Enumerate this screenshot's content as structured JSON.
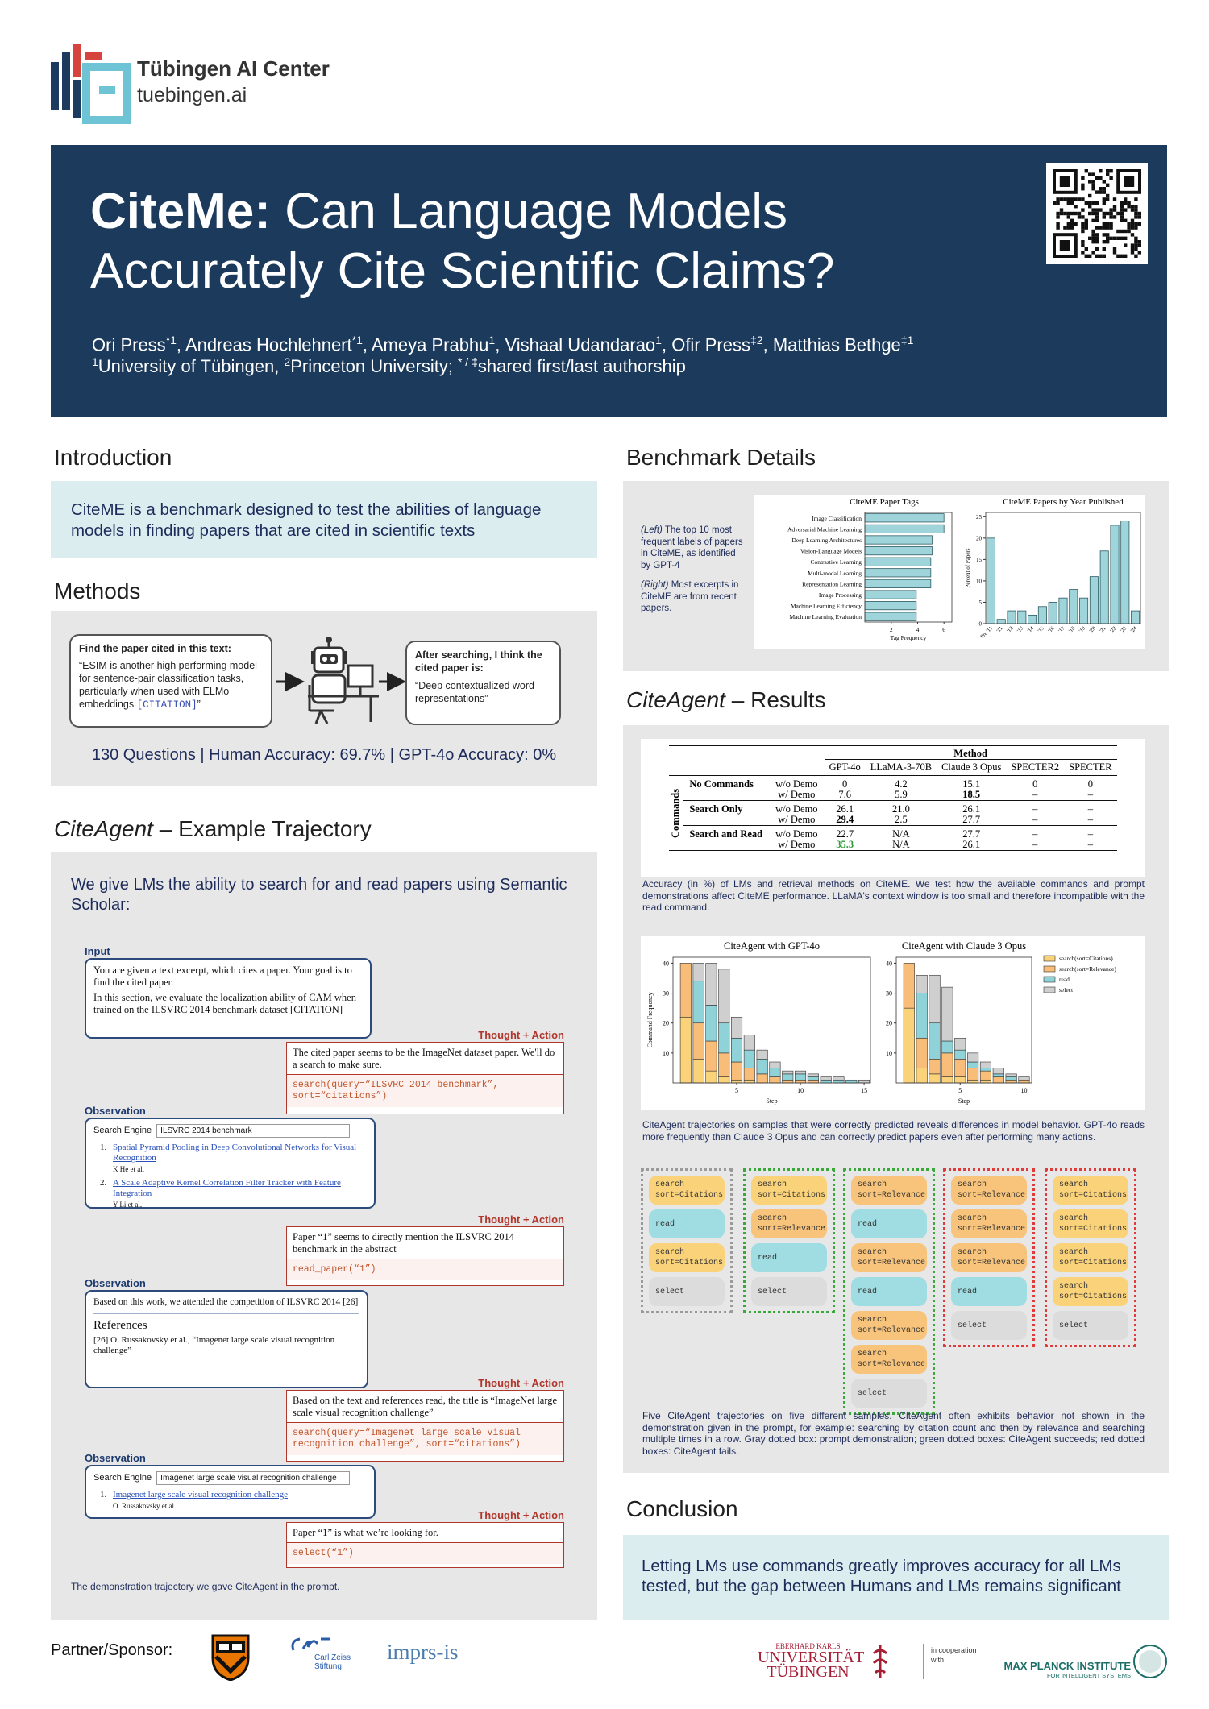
{
  "header": {
    "logo_name": "Tübingen AI Center",
    "logo_url": "tuebingen.ai",
    "title_bold": "CiteMe:",
    "title_rest": "Can Language Models Accurately Cite Scientific Claims?",
    "author_separator": ", ",
    "authors": [
      {
        "name": "Ori Press",
        "sup": "*1"
      },
      {
        "name": "Andreas Hochlehnert",
        "sup": "*1"
      },
      {
        "name": "Ameya Prabhu",
        "sup": "1"
      },
      {
        "name": "Vishaal Udandarao",
        "sup": "1"
      },
      {
        "name": "Ofir Press",
        "sup": "‡2"
      },
      {
        "name": "Matthias Bethge",
        "sup": "‡1"
      }
    ],
    "affiliations": [
      {
        "sup": "1",
        "text": "University of Tübingen,"
      },
      {
        "sup": "2",
        "text": "Princeton University;"
      },
      {
        "sup": "* / ‡",
        "text": "shared first/last authorship"
      }
    ]
  },
  "introduction": {
    "heading": "Introduction",
    "text": "CiteME is a benchmark designed to test the abilities of language models in finding papers that are cited in scientific texts"
  },
  "methods": {
    "heading": "Methods",
    "input_title": "Find the paper cited in this text:",
    "quote": "“ESIM is another high performing model for sentence-pair classification tasks, particularly when used with ELMo embeddings",
    "citation": "[CITATION]",
    "quote_close": "”",
    "output_title": "After searching, I think the cited paper is:",
    "output_quote": "“Deep contextualized word representations”",
    "stats": "130 Questions | Human Accuracy: 69.7% | GPT-4o Accuracy: 0%"
  },
  "trajectory": {
    "heading_italic": "CiteAgent",
    "heading_rest": "– Example Trajectory",
    "intro": "We give LMs the ability to search for and read papers using Semantic Scholar:",
    "steps": [
      {
        "label": "Input",
        "paragraphs": [
          "You are given a text excerpt, which cites a paper. Your goal is to find the cited paper.",
          "In this section, we evaluate the localization ability of CAM when trained on the ILSVRC 2014 benchmark dataset [CITATION]"
        ]
      },
      {
        "label": "Thought + Action",
        "thought": "The cited paper seems to be the ImageNet dataset paper. We'll do a search to make sure.",
        "code": "search(query=“ILSVRC 2014 benchmark”, sort=“citations”)"
      },
      {
        "label": "Observation",
        "search_label": "Search Engine",
        "query": "ILSVRC 2014 benchmark",
        "results": [
          {
            "number": "1.",
            "title": "Spatial Pyramid Pooling in Deep Convolutional Networks for Visual Recognition",
            "authors": "K He et al."
          },
          {
            "number": "2.",
            "title": "A Scale Adaptive Kernel Correlation Filter Tracker with Feature Integration",
            "authors": "Y Li et al."
          }
        ]
      },
      {
        "label": "Thought + Action",
        "thought": "Paper “1” seems to directly mention the ILSVRC 2014 benchmark in the abstract",
        "code": "read_paper(“1”)"
      },
      {
        "label": "Observation",
        "paragraph": "Based on this work, we  attended the competition of ILSVRC 2014 [26]",
        "references_title": "References",
        "reference": "[26] O. Russakovsky et al., “Imagenet large scale visual recognition challenge”"
      },
      {
        "label": "Thought + Action",
        "thought": "Based on the text and references read, the title is “ImageNet large scale visual recognition challenge”",
        "code": "search(query=“Imagenet large scale visual recognition challenge”, sort=“citations”)"
      },
      {
        "label": "Observation",
        "search_label": "Search Engine",
        "query": "Imagenet large scale visual recognition challenge",
        "results": [
          {
            "number": "1.",
            "title": "Imagenet large scale visual recognition challenge",
            "authors": "O. Russakovsky et al."
          }
        ]
      },
      {
        "label": "Thought + Action",
        "thought": "Paper “1” is what we’re looking for.",
        "code": "select(“1”)"
      }
    ],
    "caption": "The demonstration trajectory we gave CiteAgent in the prompt."
  },
  "benchmark": {
    "heading": "Benchmark Details",
    "caption": [
      {
        "italic": "(Left)",
        "text": "The top 10 most frequent labels of papers in CiteME, as identified by GPT-4"
      },
      {
        "italic": "(Right)",
        "text": "Most excerpts in CiteME are from recent papers."
      }
    ],
    "tags_chart": {
      "type": "hbar",
      "title": "CiteME Paper Tags",
      "categories": [
        "Image Classification",
        "Adversarial Machine Learning",
        "Deep Learning Architectures",
        "Vision-Language Models",
        "Contrastive Learning",
        "Multi-modal Learning",
        "Representation Learning",
        "Image Processing",
        "Machine Learning Efficiency",
        "Machine Learning Evaluation"
      ],
      "values": [
        6,
        6,
        5.1,
        5.1,
        5,
        5,
        5,
        3.9,
        3.9,
        3.9
      ],
      "color": "#9fd4da",
      "xlabel": "Tag Frequency",
      "xlim": [
        0,
        6.6
      ],
      "xticks": [
        2,
        4,
        6
      ]
    },
    "year_chart": {
      "type": "bar",
      "title": "CiteME Papers by Year Published",
      "categories": [
        "Pre '11",
        "'11",
        "'12",
        "'13",
        "'14",
        "'15",
        "'16",
        "'17",
        "'18",
        "'19",
        "'20",
        "'21",
        "'22",
        "'23",
        "'24"
      ],
      "values": [
        20,
        1,
        3,
        3,
        2,
        4,
        5,
        6,
        8,
        6,
        11,
        17,
        23,
        24,
        3
      ],
      "color": "#9fd4da",
      "ylabel": "Percent of Papers",
      "ylim": [
        0,
        26
      ],
      "yticks": [
        0,
        5,
        10,
        15,
        20,
        25
      ]
    }
  },
  "results": {
    "heading_italic": "CiteAgent",
    "heading_rest": "– Results",
    "table": {
      "group_header": "Method",
      "row_header": "Commands",
      "columns": [
        "GPT-4o",
        "LLaMA-3-70B",
        "Claude 3 Opus",
        "SPECTER2",
        "SPECTER"
      ],
      "groups": [
        {
          "command": "No Commands",
          "rows": [
            {
              "demo": "w/o Demo",
              "cells": [
                "0",
                "4.2",
                "15.1",
                "0",
                "0"
              ]
            },
            {
              "demo": "w/ Demo",
              "cells": [
                "7.6",
                "5.9",
                "18.5",
                "–",
                "–"
              ],
              "bold": [
                2
              ]
            }
          ]
        },
        {
          "command": "Search Only",
          "rows": [
            {
              "demo": "w/o Demo",
              "cells": [
                "26.1",
                "21.0",
                "26.1",
                "–",
                "–"
              ]
            },
            {
              "demo": "w/ Demo",
              "cells": [
                "29.4",
                "2.5",
                "27.7",
                "–",
                "–"
              ],
              "bold": [
                0
              ]
            }
          ]
        },
        {
          "command": "Search and Read",
          "rows": [
            {
              "demo": "w/o Demo",
              "cells": [
                "22.7",
                "N/A",
                "27.7",
                "–",
                "–"
              ]
            },
            {
              "demo": "w/ Demo",
              "cells": [
                "35.3",
                "N/A",
                "26.1",
                "–",
                "–"
              ],
              "bold": [
                0
              ],
              "highlight_color": "#2e9e3a"
            }
          ]
        }
      ]
    },
    "table_caption": "Accuracy (in %) of LMs and retrieval methods on CiteME. We test how the available commands and prompt demonstrations affect CiteME performance. LLaMA's context window is too small and therefore incompatible with the read command.",
    "command_stats": {
      "series": [
        {
          "name": "search(sort=Citations)",
          "color": "#f9d27a"
        },
        {
          "name": "search(sort=Relevance)",
          "color": "#f8bd78"
        },
        {
          "name": "read",
          "color": "#8fd3d9"
        },
        {
          "name": "select",
          "color": "#cfcfcf"
        }
      ],
      "charts": [
        {
          "type": "stacked-bar",
          "title": "CiteAgent with GPT-4o",
          "ylabel": "Command Frequency",
          "xlabel": "Step",
          "x": [
            1,
            2,
            3,
            4,
            5,
            6,
            7,
            8,
            9,
            10,
            11,
            12,
            13,
            14,
            15
          ],
          "values": [
            [
              22,
              8,
              4,
              2,
              1,
              1,
              0,
              0,
              0,
              0,
              0,
              0,
              0,
              0,
              0
            ],
            [
              18,
              12,
              10,
              8,
              6,
              4,
              3,
              2,
              1,
              1,
              1,
              0,
              0,
              0,
              0
            ],
            [
              0,
              14,
              12,
              10,
              8,
              6,
              5,
              3,
              2,
              2,
              1,
              1,
              1,
              1,
              0
            ],
            [
              0,
              6,
              14,
              18,
              7,
              5,
              3,
              2,
              1,
              1,
              1,
              1,
              1,
              0,
              1
            ]
          ],
          "xlim": [
            0,
            15.5
          ],
          "xticks": [
            5,
            10,
            15
          ],
          "ylim": [
            0,
            42
          ],
          "yticks": [
            10,
            20,
            30,
            40
          ]
        },
        {
          "type": "stacked-bar",
          "title": "CiteAgent with Claude 3 Opus",
          "xlabel": "Step",
          "x": [
            1,
            2,
            3,
            4,
            5,
            6,
            7,
            8,
            9,
            10
          ],
          "values": [
            [
              25,
              5,
              3,
              2,
              2,
              1,
              1,
              0,
              0,
              0
            ],
            [
              15,
              10,
              5,
              8,
              6,
              4,
              3,
              2,
              1,
              1
            ],
            [
              0,
              15,
              12,
              4,
              3,
              2,
              1,
              1,
              1,
              0
            ],
            [
              0,
              6,
              16,
              18,
              4,
              3,
              2,
              2,
              1,
              1
            ]
          ],
          "xlim": [
            0,
            10.6
          ],
          "xticks": [
            5,
            10
          ],
          "ylim": [
            0,
            42
          ],
          "yticks": [
            10,
            20,
            30,
            40
          ]
        }
      ]
    },
    "command_caption": "CiteAgent trajectories on samples that were correctly predicted reveals differences in model behavior. GPT-4o reads more frequently than Claude 3 Opus and can correctly predict papers even after performing many actions.",
    "trajectory_columns": [
      {
        "border": "#9a9a9a",
        "steps": [
          {
            "cmd": "search",
            "arg": "sort=Citations",
            "color": "#f9d27a"
          },
          {
            "cmd": "read",
            "color": "#9fdde2"
          },
          {
            "cmd": "search",
            "arg": "sort=Citations",
            "color": "#f9d27a"
          },
          {
            "cmd": "select",
            "color": "#dcdcdc"
          }
        ]
      },
      {
        "border": "#3aa83a",
        "steps": [
          {
            "cmd": "search",
            "arg": "sort=Citations",
            "color": "#f9d27a"
          },
          {
            "cmd": "search",
            "arg": "sort=Relevance",
            "color": "#f8c47c"
          },
          {
            "cmd": "read",
            "color": "#9fdde2"
          },
          {
            "cmd": "select",
            "color": "#dcdcdc"
          }
        ]
      },
      {
        "border": "#3aa83a",
        "steps": [
          {
            "cmd": "search",
            "arg": "sort=Relevance",
            "color": "#f8c47c"
          },
          {
            "cmd": "read",
            "color": "#9fdde2"
          },
          {
            "cmd": "search",
            "arg": "sort=Relevance",
            "color": "#f8c47c"
          },
          {
            "cmd": "read",
            "color": "#9fdde2"
          },
          {
            "cmd": "search",
            "arg": "sort=Relevance",
            "color": "#f8c47c"
          },
          {
            "cmd": "search",
            "arg": "sort=Relevance",
            "color": "#f8c47c"
          },
          {
            "cmd": "select",
            "color": "#dcdcdc"
          }
        ]
      },
      {
        "border": "#e03a3a",
        "steps": [
          {
            "cmd": "search",
            "arg": "sort=Relevance",
            "color": "#f8c47c"
          },
          {
            "cmd": "search",
            "arg": "sort=Relevance",
            "color": "#f8c47c"
          },
          {
            "cmd": "search",
            "arg": "sort=Relevance",
            "color": "#f8c47c"
          },
          {
            "cmd": "read",
            "color": "#9fdde2"
          },
          {
            "cmd": "select",
            "color": "#dcdcdc"
          }
        ]
      },
      {
        "border": "#e03a3a",
        "steps": [
          {
            "cmd": "search",
            "arg": "sort=Citations",
            "color": "#f9d27a"
          },
          {
            "cmd": "search",
            "arg": "sort=Citations",
            "color": "#f9d27a"
          },
          {
            "cmd": "search",
            "arg": "sort=Citations",
            "color": "#f9d27a"
          },
          {
            "cmd": "search",
            "arg": "sort=Citations",
            "color": "#f9d27a"
          },
          {
            "cmd": "select",
            "color": "#dcdcdc"
          }
        ]
      }
    ],
    "trajectories_caption": "Five CiteAgent trajectories on five different samples. CiteAgent often exhibits behavior not shown in the demonstration given in the prompt, for example: searching by citation count and then by relevance and searching multiple times in a row. Gray dotted box: prompt demonstration; green dotted boxes: CiteAgent succeeds; red dotted boxes: CiteAgent fails."
  },
  "conclusion": {
    "heading": "Conclusion",
    "text": "Letting LMs use commands greatly improves accuracy for all LMs tested, but the gap between Humans and LMs remains significant"
  },
  "footer": {
    "partner_label": "Partner/Sponsor:",
    "zeiss": "Carl Zeiss Stiftung",
    "imprs": "imprs-is",
    "tuebingen": [
      "EBERHARD KARLS",
      "UNIVERSITÄT",
      "TÜBINGEN"
    ],
    "cooperation": "in cooperation with",
    "mpi": [
      "MAX PLANCK INSTITUTE",
      "FOR INTELLIGENT SYSTEMS"
    ]
  }
}
